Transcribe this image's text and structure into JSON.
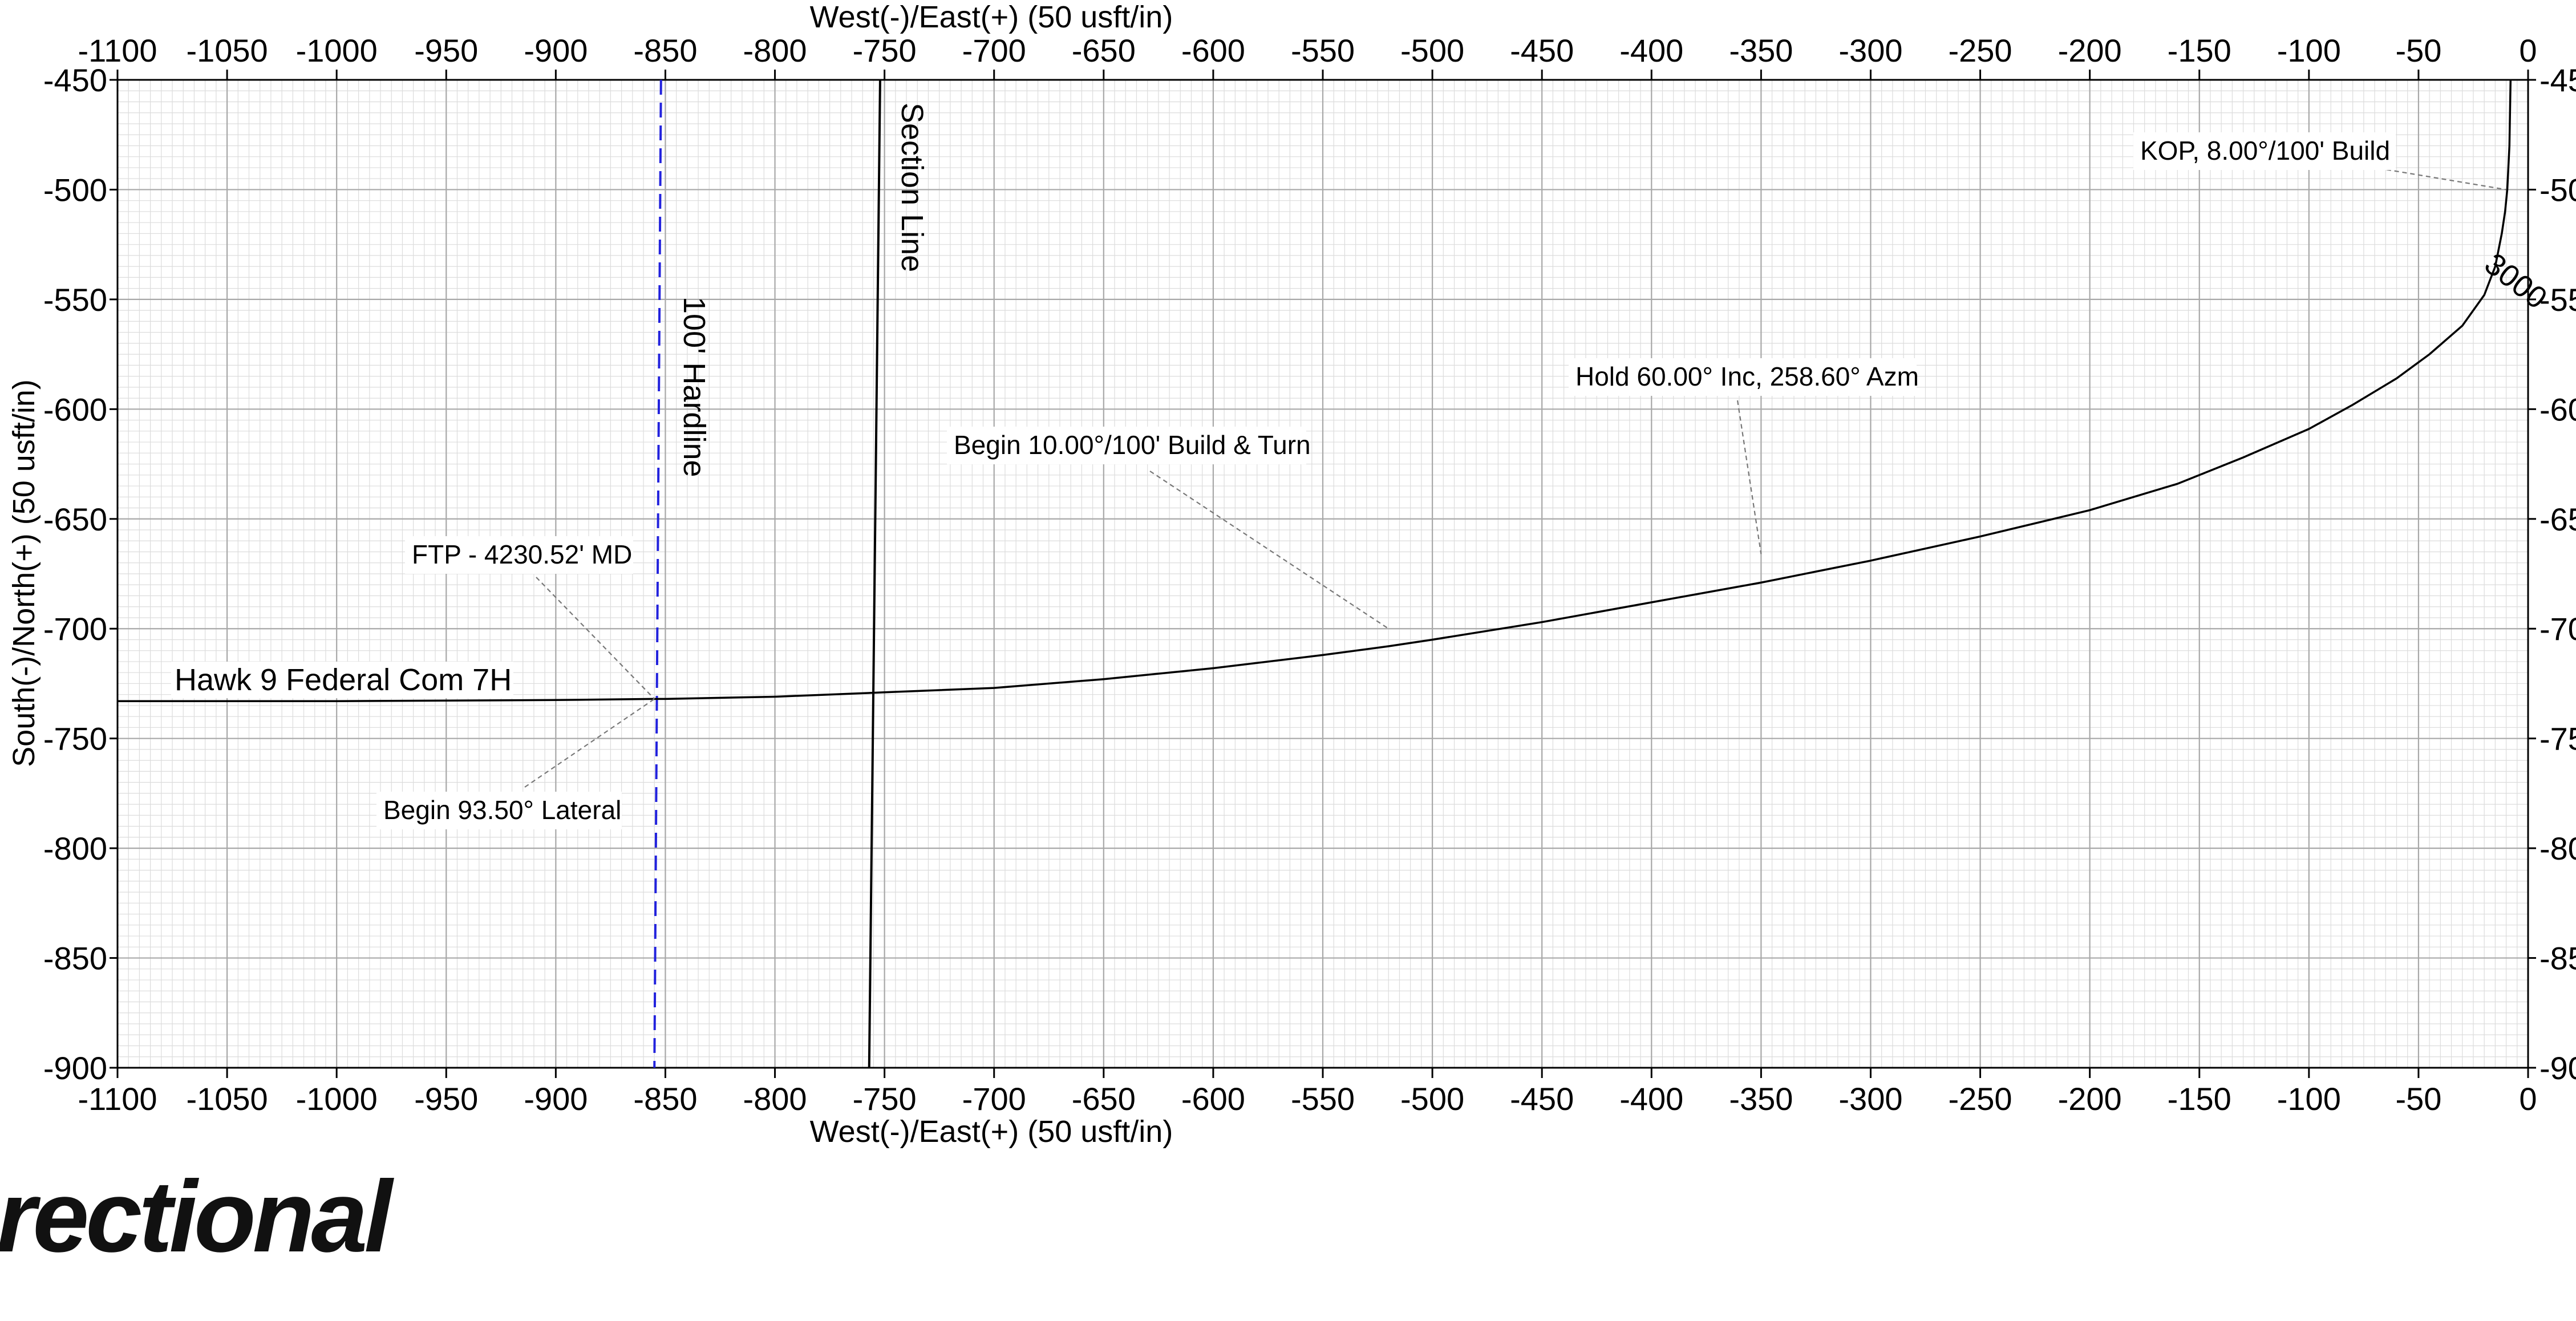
{
  "chart_data": {
    "type": "line",
    "xlabel": "West(-)/East(+) (50 usft/in)",
    "ylabel": "South(-)/North(+) (50 usft/in)",
    "xlim": [
      -1100,
      0
    ],
    "ylim": [
      -900,
      -450
    ],
    "x_ticks": [
      -1100,
      -1050,
      -1000,
      -950,
      -900,
      -850,
      -800,
      -750,
      -700,
      -650,
      -600,
      -550,
      -500,
      -450,
      -400,
      -350,
      -300,
      -250,
      -200,
      -150,
      -100,
      -50,
      0
    ],
    "y_ticks": [
      -450,
      -500,
      -550,
      -600,
      -650,
      -700,
      -750,
      -800,
      -850,
      -900
    ],
    "y_ticks_right": [
      "-45",
      "-50",
      "-55",
      "-60",
      "-65",
      "-70",
      "-75",
      "-80",
      "-85",
      "-90"
    ],
    "grid": true,
    "series": [
      {
        "name": "Hawk 9 Federal Com 7H",
        "color": "#000000",
        "x": [
          -8,
          -8.5,
          -9.5,
          -10.5,
          -12,
          -15,
          -20,
          -30,
          -45,
          -60,
          -80,
          -100,
          -130,
          -160,
          -200,
          -250,
          -300,
          -350,
          -400,
          -450,
          -500,
          -520,
          -550,
          -600,
          -650,
          -700,
          -750,
          -800,
          -850,
          -855,
          -900,
          -1000,
          -1100
        ],
        "y": [
          -450,
          -480,
          -500,
          -510,
          -520,
          -535,
          -548,
          -562,
          -575,
          -586,
          -598,
          -609,
          -622,
          -634,
          -646,
          -658,
          -669,
          -679,
          -688,
          -697,
          -705,
          -708,
          -712,
          -718,
          -723,
          -727,
          -729,
          -731,
          -732,
          -732,
          -732.5,
          -733,
          -733
        ]
      }
    ],
    "lines": [
      {
        "name": "Section Line",
        "label": "Section Line",
        "color": "#000000",
        "style": "solid",
        "x_top": -752,
        "x_bottom": -757
      },
      {
        "name": "100' Hardline",
        "label": "100' Hardline",
        "color": "#2222dd",
        "style": "dashed",
        "x_top": -852,
        "x_bottom": -855
      }
    ],
    "annotations": [
      {
        "text": "KOP, 8.00°/100' Build",
        "x": -10,
        "y": -500
      },
      {
        "text": "Hold 60.00° Inc, 258.60° Azm",
        "x": -350,
        "y": -666
      },
      {
        "text": "Begin 10.00°/100' Build & Turn",
        "x": -520,
        "y": -700
      },
      {
        "text": "FTP - 4230.52' MD",
        "x": -855,
        "y": -732
      },
      {
        "text": "Begin 93.50° Lateral",
        "x": -855,
        "y": -732
      },
      {
        "text": "3000",
        "x": -15,
        "y": -540
      }
    ],
    "well_label": "Hawk 9 Federal Com 7H"
  },
  "footer": {
    "logo_text": "rectional"
  }
}
